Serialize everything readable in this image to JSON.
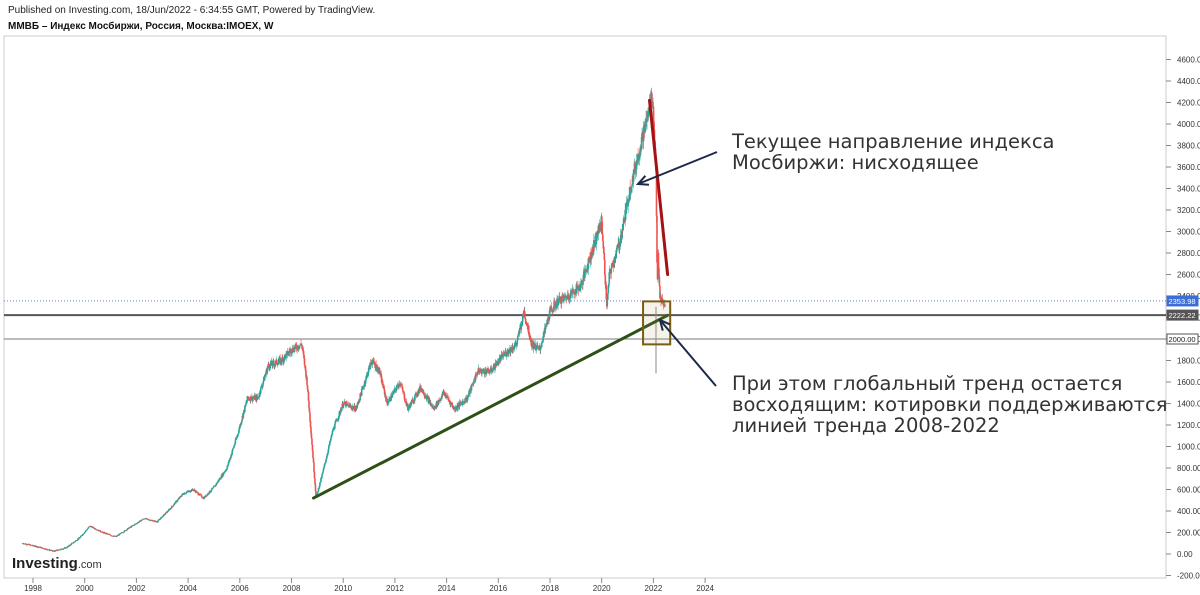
{
  "header": {
    "published": "Published on Investing.com, 18/Jun/2022 - 6:34:55 GMT, Powered by TradingView.",
    "symbol": "ММВБ – Индекс Мосбиржи, Россия, Москва:IMOEX, W"
  },
  "branding": {
    "name": "Investing",
    "suffix": ".com"
  },
  "annotations": {
    "downtrend": "Текущее направление индекса\nМосбиржи: нисходящее",
    "uptrend": "При этом глобальный тренд остается\nвосходящим: котировки поддерживаются\nлинией тренда 2008-2022"
  },
  "colors": {
    "up_candle": "#26a69a",
    "down_candle": "#ef5350",
    "downtrend_line": "#a31313",
    "uptrend_line": "#2d5016",
    "arrow": "#1b2a4a",
    "price_badge": "#3b6fd6"
  },
  "chart_data": {
    "type": "line",
    "title": "ММВБ – Индекс Мосбиржи, Россия, Москва:IMOEX, W",
    "xlabel": "",
    "ylabel": "",
    "xlim": [
      1997.5,
      2022.9
    ],
    "ylim": [
      -200,
      4800
    ],
    "x_ticks": [
      "1998",
      "2000",
      "2002",
      "2004",
      "2006",
      "2008",
      "2010",
      "2012",
      "2014",
      "2016",
      "2018",
      "2020",
      "2022",
      "2024"
    ],
    "y_ticks": [
      "-200.00",
      "0.00",
      "200.00",
      "400.00",
      "600.00",
      "800.00",
      "1000.00",
      "1200.00",
      "1400.00",
      "1600.00",
      "1800.00",
      "2000.00",
      "2200.00",
      "2400.00",
      "2600.00",
      "2800.00",
      "3000.00",
      "3200.00",
      "3400.00",
      "3600.00",
      "3800.00",
      "4000.00",
      "4200.00",
      "4400.00",
      "4600.00"
    ],
    "series": [
      {
        "values": [
          [
            1997.6,
            100
          ],
          [
            1998.3,
            60
          ],
          [
            1998.8,
            25
          ],
          [
            1999.3,
            60
          ],
          [
            1999.8,
            150
          ],
          [
            2000.2,
            260
          ],
          [
            2000.7,
            200
          ],
          [
            2001.2,
            160
          ],
          [
            2001.7,
            240
          ],
          [
            2002.3,
            330
          ],
          [
            2002.8,
            300
          ],
          [
            2003.3,
            420
          ],
          [
            2003.8,
            560
          ],
          [
            2004.2,
            600
          ],
          [
            2004.6,
            520
          ],
          [
            2005.0,
            620
          ],
          [
            2005.5,
            800
          ],
          [
            2005.9,
            1100
          ],
          [
            2006.3,
            1450
          ],
          [
            2006.7,
            1450
          ],
          [
            2007.1,
            1750
          ],
          [
            2007.6,
            1800
          ],
          [
            2008.0,
            1900
          ],
          [
            2008.4,
            1950
          ],
          [
            2008.6,
            1600
          ],
          [
            2008.8,
            1000
          ],
          [
            2008.95,
            520
          ],
          [
            2009.2,
            750
          ],
          [
            2009.6,
            1150
          ],
          [
            2010.0,
            1400
          ],
          [
            2010.5,
            1350
          ],
          [
            2011.1,
            1800
          ],
          [
            2011.4,
            1700
          ],
          [
            2011.7,
            1400
          ],
          [
            2012.2,
            1600
          ],
          [
            2012.5,
            1350
          ],
          [
            2013.0,
            1550
          ],
          [
            2013.5,
            1350
          ],
          [
            2013.9,
            1500
          ],
          [
            2014.3,
            1350
          ],
          [
            2014.8,
            1450
          ],
          [
            2015.2,
            1700
          ],
          [
            2015.7,
            1700
          ],
          [
            2016.2,
            1850
          ],
          [
            2016.7,
            1950
          ],
          [
            2017.0,
            2250
          ],
          [
            2017.3,
            1950
          ],
          [
            2017.6,
            1900
          ],
          [
            2018.0,
            2250
          ],
          [
            2018.3,
            2350
          ],
          [
            2018.7,
            2400
          ],
          [
            2019.2,
            2500
          ],
          [
            2019.6,
            2800
          ],
          [
            2020.0,
            3100
          ],
          [
            2020.2,
            2300
          ],
          [
            2020.3,
            2600
          ],
          [
            2020.7,
            2900
          ],
          [
            2021.1,
            3400
          ],
          [
            2021.5,
            3800
          ],
          [
            2021.8,
            4100
          ],
          [
            2021.95,
            4290
          ],
          [
            2022.1,
            3600
          ],
          [
            2022.15,
            2400
          ],
          [
            2022.17,
            2800
          ],
          [
            2022.25,
            2400
          ],
          [
            2022.4,
            2300
          ],
          [
            2022.46,
            2350
          ]
        ]
      }
    ],
    "price_levels": [
      {
        "value": 2353.98,
        "label": "2353.98",
        "style": "dotted"
      },
      {
        "value": 2222.22,
        "label": "2222.22",
        "style": "thick"
      },
      {
        "value": 2000.0,
        "label": "2000.00",
        "style": "thin"
      }
    ],
    "trendlines": [
      {
        "name": "downtrend",
        "from": [
          2021.85,
          4220
        ],
        "to": [
          2022.55,
          2600
        ]
      },
      {
        "name": "uptrend",
        "from": [
          2008.85,
          520
        ],
        "to": [
          2022.55,
          2220
        ]
      }
    ],
    "highlight_box": {
      "x": [
        2021.6,
        2022.65
      ],
      "y": [
        1950,
        2350
      ]
    },
    "wick_low": {
      "x": 2022.1,
      "value": 1680
    }
  }
}
